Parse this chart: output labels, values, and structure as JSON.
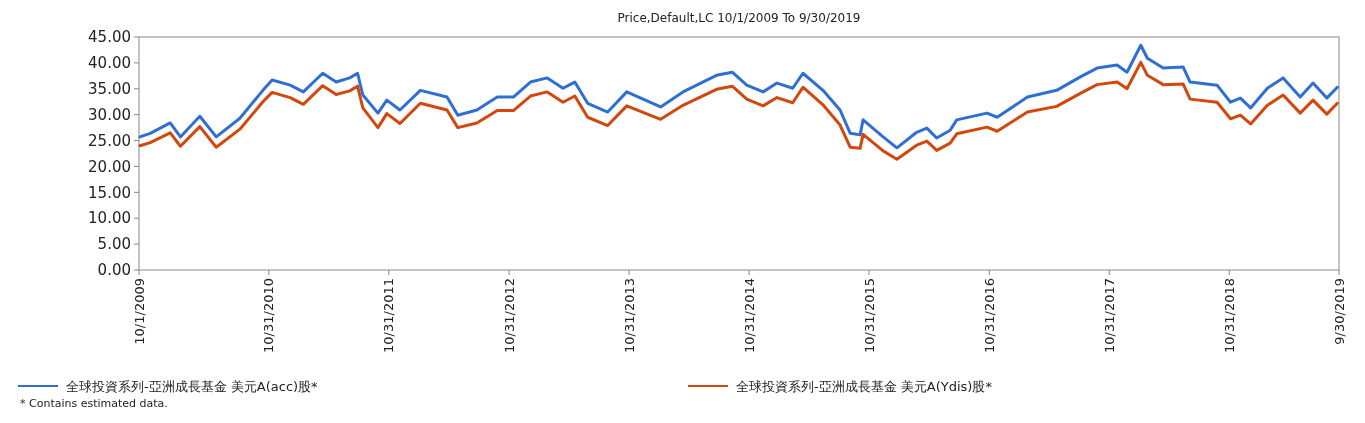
{
  "chart_data": {
    "type": "line",
    "title": "Price,Default,LC 10/1/2009 To 9/30/2019",
    "x": [
      "2009-10-04",
      "2009-11-04",
      "2010-01-04",
      "2010-02-04",
      "2010-04-04",
      "2010-05-24",
      "2010-08-04",
      "2010-10-13",
      "2010-11-10",
      "2011-01-04",
      "2011-02-13",
      "2011-04-13",
      "2011-05-24",
      "2011-07-04",
      "2011-07-28",
      "2011-08-13",
      "2011-09-28",
      "2011-10-25",
      "2011-12-04",
      "2012-02-04",
      "2012-04-25",
      "2012-05-28",
      "2012-07-25",
      "2012-09-25",
      "2012-11-13",
      "2013-01-04",
      "2013-02-24",
      "2013-04-13",
      "2013-05-19",
      "2013-06-27",
      "2013-08-27",
      "2013-10-24",
      "2014-02-04",
      "2014-04-13",
      "2014-07-24",
      "2014-09-10",
      "2014-10-24",
      "2014-12-13",
      "2015-01-24",
      "2015-03-13",
      "2015-04-13",
      "2015-06-13",
      "2015-08-04",
      "2015-09-04",
      "2015-10-04",
      "2015-10-13",
      "2015-12-13",
      "2016-01-24",
      "2016-03-24",
      "2016-04-24",
      "2016-05-24",
      "2016-07-04",
      "2016-07-24",
      "2016-10-24",
      "2016-11-24",
      "2017-02-24",
      "2017-05-24",
      "2017-08-04",
      "2017-09-24",
      "2017-11-24",
      "2017-12-24",
      "2018-02-04",
      "2018-02-24",
      "2018-04-13",
      "2018-06-13",
      "2018-07-04",
      "2018-09-24",
      "2018-11-04",
      "2018-12-04",
      "2019-01-04",
      "2019-02-24",
      "2019-04-13",
      "2019-06-04",
      "2019-07-13",
      "2019-08-24",
      "2019-09-25"
    ],
    "series": [
      {
        "name": "全球投資系列-亞洲成長基金 美元A(acc)股*",
        "color": "#2f6fd4",
        "values": [
          25.7,
          26.4,
          28.4,
          25.7,
          29.7,
          25.7,
          29.3,
          34.7,
          36.7,
          35.7,
          34.4,
          38.0,
          36.3,
          37.1,
          38.0,
          33.8,
          30.3,
          32.8,
          30.9,
          34.7,
          33.4,
          29.9,
          30.9,
          33.4,
          33.4,
          36.3,
          37.1,
          35.1,
          36.3,
          32.2,
          30.5,
          34.4,
          31.5,
          34.4,
          37.6,
          38.2,
          35.7,
          34.4,
          36.1,
          35.1,
          38.0,
          34.7,
          30.9,
          26.4,
          26.1,
          29.0,
          25.7,
          23.6,
          26.6,
          27.4,
          25.5,
          27.0,
          29.0,
          30.3,
          29.5,
          33.4,
          34.7,
          37.3,
          39.0,
          39.6,
          38.2,
          43.4,
          40.9,
          39.0,
          39.2,
          36.3,
          35.7,
          32.4,
          33.2,
          31.3,
          35.1,
          37.1,
          33.4,
          36.1,
          33.2,
          35.3
        ]
      },
      {
        "name": "全球投資系列-亞洲成長基金 美元A(Ydis)股*",
        "color": "#d2480c",
        "values": [
          24.0,
          24.6,
          26.5,
          23.9,
          27.7,
          23.7,
          27.2,
          32.5,
          34.3,
          33.3,
          32.0,
          35.6,
          33.9,
          34.6,
          35.5,
          31.3,
          27.5,
          30.2,
          28.3,
          32.2,
          30.9,
          27.5,
          28.4,
          30.8,
          30.8,
          33.6,
          34.4,
          32.4,
          33.6,
          29.5,
          27.9,
          31.7,
          29.1,
          31.8,
          34.9,
          35.5,
          33.0,
          31.7,
          33.3,
          32.3,
          35.3,
          31.9,
          28.0,
          23.7,
          23.5,
          26.2,
          23.0,
          21.4,
          24.1,
          24.9,
          23.1,
          24.5,
          26.3,
          27.6,
          26.8,
          30.5,
          31.6,
          34.1,
          35.8,
          36.3,
          35.0,
          40.1,
          37.6,
          35.8,
          35.9,
          33.0,
          32.4,
          29.2,
          29.9,
          28.2,
          31.8,
          33.8,
          30.3,
          32.8,
          30.1,
          32.2
        ]
      }
    ],
    "xlim": [
      "2009-10-01",
      "2019-09-30"
    ],
    "xticks": [
      {
        "value": "2009-10-01",
        "label": "10/1/2009"
      },
      {
        "value": "2010-10-31",
        "label": "10/31/2010"
      },
      {
        "value": "2011-10-31",
        "label": "10/31/2011"
      },
      {
        "value": "2012-10-31",
        "label": "10/31/2012"
      },
      {
        "value": "2013-10-31",
        "label": "10/31/2013"
      },
      {
        "value": "2014-10-31",
        "label": "10/31/2014"
      },
      {
        "value": "2015-10-31",
        "label": "10/31/2015"
      },
      {
        "value": "2016-10-31",
        "label": "10/31/2016"
      },
      {
        "value": "2017-10-31",
        "label": "10/31/2017"
      },
      {
        "value": "2018-10-31",
        "label": "10/31/2018"
      },
      {
        "value": "2019-09-30",
        "label": "9/30/2019"
      }
    ],
    "ylim": [
      0,
      45
    ],
    "yticks": [
      {
        "value": 0,
        "label": "0.00"
      },
      {
        "value": 5,
        "label": "5.00"
      },
      {
        "value": 10,
        "label": "10.00"
      },
      {
        "value": 15,
        "label": "15.00"
      },
      {
        "value": 20,
        "label": "20.00"
      },
      {
        "value": 25,
        "label": "25.00"
      },
      {
        "value": 30,
        "label": "30.00"
      },
      {
        "value": 35,
        "label": "35.00"
      },
      {
        "value": 40,
        "label": "40.00"
      },
      {
        "value": 45,
        "label": "45.00"
      }
    ],
    "legend": "bottom",
    "marker": "none",
    "line_style": "solid",
    "annotations": [
      "* Contains estimated data."
    ]
  }
}
